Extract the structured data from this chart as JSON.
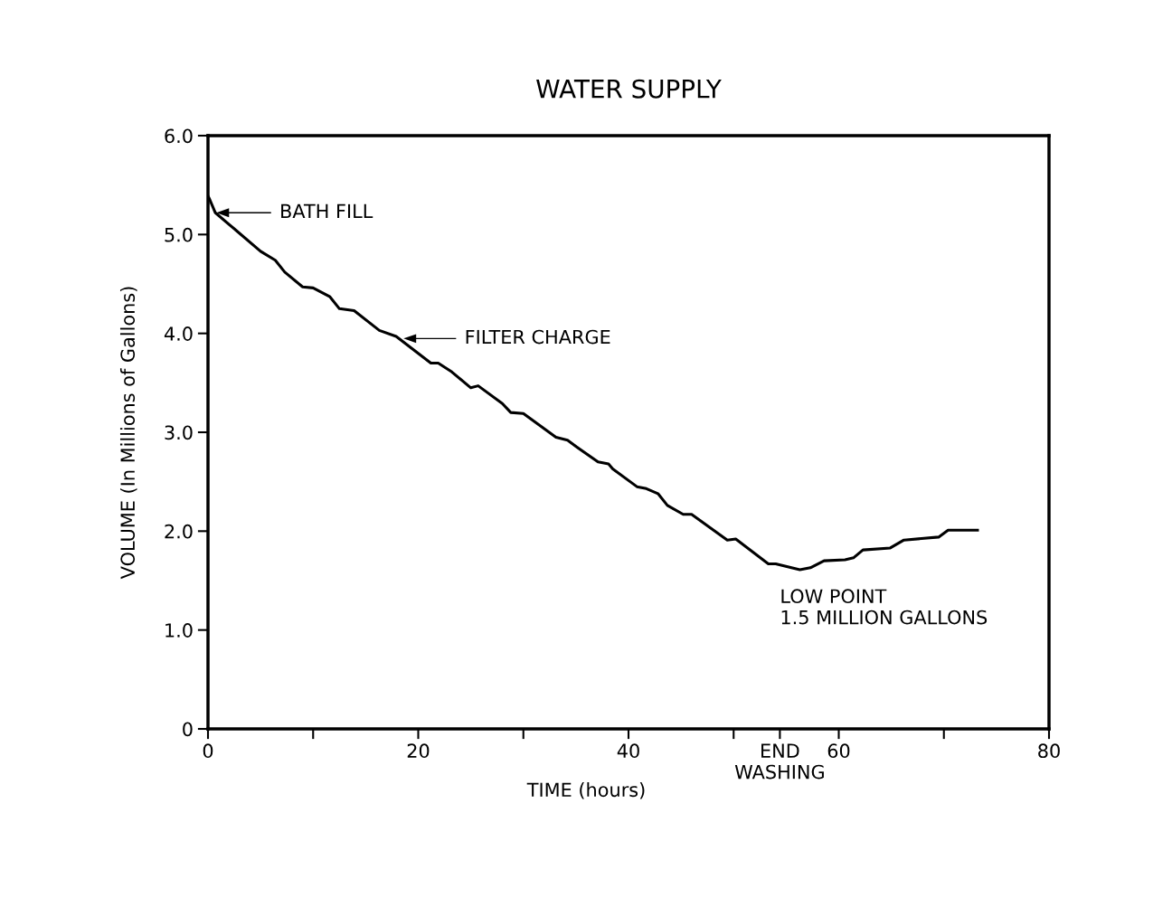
{
  "chart_data": {
    "type": "line",
    "title": "WATER SUPPLY",
    "xlabel": "TIME (hours)",
    "ylabel": "VOLUME (In Millions of Gallons)",
    "x": [
      0,
      0.1,
      0.7,
      2.7,
      5.0,
      6.4,
      7.3,
      9.0,
      10.0,
      11.6,
      12.5,
      13.9,
      16.3,
      17.9,
      21.2,
      21.9,
      23.2,
      25.0,
      25.7,
      28.0,
      28.8,
      30.0,
      33.1,
      34.2,
      35.1,
      37.1,
      38.1,
      38.5,
      40.8,
      41.7,
      42.8,
      43.7,
      45.2,
      46.0,
      49.4,
      50.2,
      53.3,
      54.0,
      56.3,
      57.3,
      58.6,
      60.6,
      61.4,
      62.3,
      64.9,
      66.2,
      69.5,
      70.4,
      73.2
    ],
    "series": [
      {
        "color": "#000000",
        "values": [
          5.39,
          5.37,
          5.22,
          5.04,
          4.83,
          4.74,
          4.62,
          4.47,
          4.46,
          4.37,
          4.25,
          4.23,
          4.03,
          3.97,
          3.7,
          3.7,
          3.61,
          3.45,
          3.47,
          3.29,
          3.2,
          3.19,
          2.95,
          2.92,
          2.85,
          2.7,
          2.68,
          2.63,
          2.45,
          2.43,
          2.38,
          2.26,
          2.17,
          2.17,
          1.91,
          1.92,
          1.67,
          1.67,
          1.61,
          1.63,
          1.7,
          1.71,
          1.73,
          1.81,
          1.83,
          1.91,
          1.94,
          2.01,
          2.01
        ]
      }
    ],
    "xlim": [
      0,
      80
    ],
    "ylim": [
      0,
      6
    ],
    "xticks": [
      0,
      {
        "value": 10,
        "label": null
      },
      20,
      {
        "value": 30,
        "label": null
      },
      40,
      {
        "value": 50,
        "label": null
      },
      {
        "value": 54.4,
        "label": "END\nWASHING"
      },
      60,
      {
        "value": 70,
        "label": null
      },
      80
    ],
    "yticks": [
      0,
      {
        "value": 1,
        "label": "1.0"
      },
      {
        "value": 2,
        "label": "2.0"
      },
      {
        "value": 3,
        "label": "3.0"
      },
      {
        "value": 4,
        "label": "4.0"
      },
      {
        "value": 5,
        "label": "5.0"
      },
      {
        "value": 6,
        "label": "6.0"
      }
    ],
    "annotations": [
      "BATH FILL",
      "FILTER CHARGE",
      "LOW POINT\n1.5 MILLION GALLONS"
    ],
    "grid": false,
    "legend": false,
    "marker": "none",
    "line_style": "solid"
  }
}
